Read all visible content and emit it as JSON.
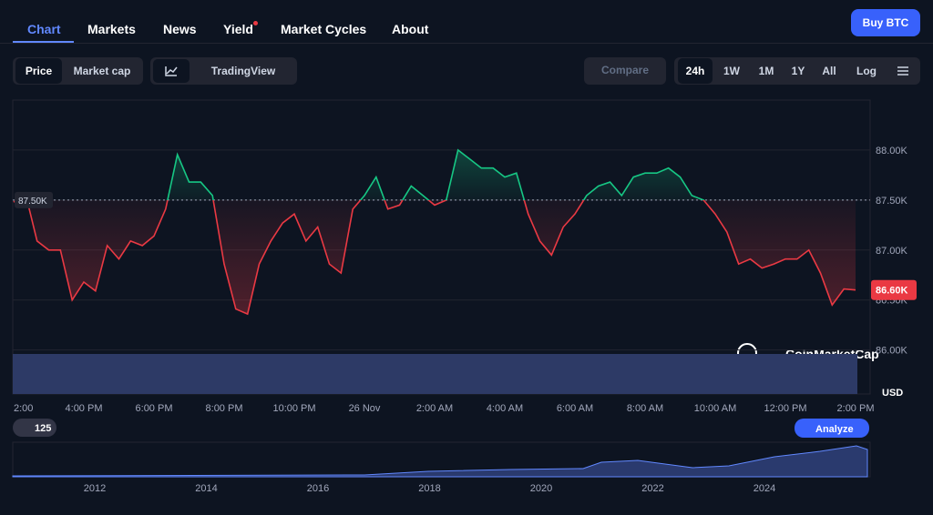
{
  "nav": {
    "tabs": [
      "Chart",
      "Markets",
      "News",
      "Yield",
      "Market Cycles",
      "About"
    ],
    "button": "Buy BTC"
  },
  "controls": {
    "view": [
      "Price",
      "Market cap"
    ],
    "tradingview": "TradingView",
    "compare": "Compare",
    "ranges": [
      "24h",
      "1W",
      "1M",
      "1Y",
      "All"
    ],
    "log": "Log"
  },
  "watermark": "CoinMarketCap",
  "badge": "125",
  "analyze": "Analyze",
  "navigator": {
    "labels": [
      "2012",
      "2014",
      "2016",
      "2018",
      "2020",
      "2022",
      "2024"
    ]
  },
  "chart_data": {
    "type": "line",
    "unit": "USD",
    "categories": [
      "2:00",
      null,
      null,
      null,
      null,
      null,
      "4:00 PM",
      null,
      null,
      null,
      null,
      null,
      "6:00 PM",
      null,
      null,
      null,
      null,
      null,
      "8:00 PM",
      null,
      null,
      null,
      null,
      null,
      "10:00 PM",
      null,
      null,
      null,
      null,
      null,
      "26 Nov",
      null,
      null,
      null,
      null,
      null,
      "2:00 AM",
      null,
      null,
      null,
      null,
      null,
      "4:00 AM",
      null,
      null,
      null,
      null,
      null,
      "6:00 AM",
      null,
      null,
      null,
      null,
      null,
      "8:00 AM",
      null,
      null,
      null,
      null,
      null,
      "10:00 AM",
      null,
      null,
      null,
      null,
      null,
      "12:00 PM",
      null,
      null,
      null,
      null,
      null,
      "2:00 PM"
    ],
    "values": [
      87480,
      87570,
      87090,
      87000,
      87000,
      86500,
      86680,
      86590,
      87045,
      86910,
      87090,
      87045,
      87140,
      87410,
      87955,
      87680,
      87680,
      87545,
      86860,
      86410,
      86360,
      86860,
      87090,
      87270,
      87360,
      87090,
      87230,
      86860,
      86770,
      87410,
      87545,
      87730,
      87410,
      87450,
      87640,
      87545,
      87450,
      87500,
      88000,
      87910,
      87820,
      87820,
      87730,
      87770,
      87360,
      87090,
      86950,
      87230,
      87360,
      87545,
      87640,
      87680,
      87545,
      87730,
      87770,
      87770,
      87820,
      87730,
      87545,
      87500,
      87360,
      87180,
      86860,
      86910,
      86820,
      86860,
      86910,
      86910,
      87000,
      86770,
      86450,
      86610,
      86600
    ],
    "ylim": [
      85560,
      88500
    ],
    "yticks": [
      {
        "value": 86000,
        "label": "86.00K"
      },
      {
        "value": 86500,
        "label": "86.50K"
      },
      {
        "value": 87000,
        "label": "87.00K"
      },
      {
        "value": 87500,
        "label": "87.50K"
      },
      {
        "value": 88000,
        "label": "88.00K"
      }
    ],
    "reference": {
      "value": 87500,
      "label": "87.50K"
    },
    "current": {
      "value": 86600,
      "label": "86.60K"
    },
    "up_color": "#16c784",
    "down_color": "#ea3943",
    "grid": true
  }
}
